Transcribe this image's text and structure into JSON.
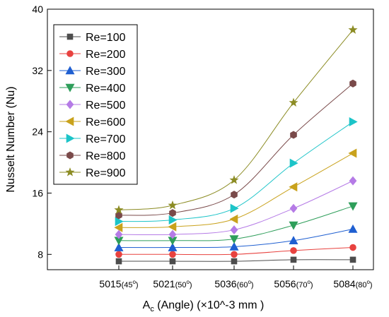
{
  "chart_data": {
    "type": "line",
    "title": "",
    "ylabel": "Nusselt Number (Nu)",
    "xlabel": {
      "main": "A",
      "sub": "c",
      "rest": " (Angle) (×10^-3 mm )"
    },
    "ylim": [
      6,
      40
    ],
    "yticks": [
      8,
      16,
      24,
      32,
      40
    ],
    "categories": [
      {
        "value": "5015",
        "angle": "(45",
        "deg": "o",
        "close": ")"
      },
      {
        "value": "5021",
        "angle": "(50",
        "deg": "o",
        "close": ")"
      },
      {
        "value": "5036",
        "angle": "(60",
        "deg": "o",
        "close": ")"
      },
      {
        "value": "5056",
        "angle": "(70",
        "deg": "o",
        "close": ")"
      },
      {
        "value": "5084",
        "angle": "(80",
        "deg": "o",
        "close": ")"
      }
    ],
    "legend_position": "top-left",
    "series": [
      {
        "name": "Re=100",
        "marker": "square",
        "color": "#4d4d4d",
        "values": [
          7.1,
          7.1,
          7.1,
          7.3,
          7.3
        ]
      },
      {
        "name": "Re=200",
        "marker": "circle",
        "color": "#e8423f",
        "values": [
          8.0,
          8.0,
          8.0,
          8.5,
          8.9
        ]
      },
      {
        "name": "Re=300",
        "marker": "triangle-up",
        "color": "#1f5fd1",
        "values": [
          8.9,
          8.9,
          9.0,
          9.8,
          11.3
        ]
      },
      {
        "name": "Re=400",
        "marker": "triangle-down",
        "color": "#2e9e5a",
        "values": [
          9.8,
          9.8,
          10.0,
          11.8,
          14.3
        ]
      },
      {
        "name": "Re=500",
        "marker": "diamond",
        "color": "#b57be6",
        "values": [
          10.6,
          10.6,
          11.2,
          14.0,
          17.6
        ]
      },
      {
        "name": "Re=600",
        "marker": "triangle-left",
        "color": "#c9a21c",
        "values": [
          11.5,
          11.6,
          12.6,
          16.8,
          21.2
        ]
      },
      {
        "name": "Re=700",
        "marker": "triangle-right",
        "color": "#1cc4c8",
        "values": [
          12.3,
          12.5,
          14.0,
          19.9,
          25.3
        ]
      },
      {
        "name": "Re=800",
        "marker": "hexagon",
        "color": "#7a4a4a",
        "values": [
          13.1,
          13.4,
          15.8,
          23.6,
          30.3
        ]
      },
      {
        "name": "Re=900",
        "marker": "star",
        "color": "#8c8c24",
        "values": [
          13.8,
          14.4,
          17.7,
          27.8,
          37.3
        ]
      }
    ]
  }
}
